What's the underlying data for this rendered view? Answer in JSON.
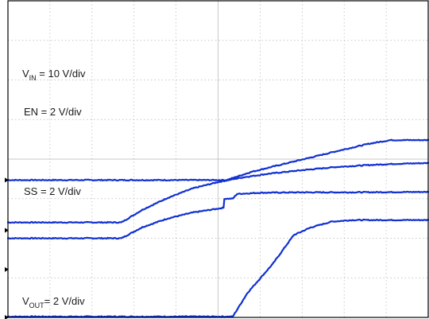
{
  "chart_data": {
    "type": "line",
    "divisions": {
      "x": 10,
      "y": 8
    },
    "series": [
      {
        "name": "VIN",
        "label": {
          "main": "V",
          "sub": "IN",
          "rest": " = 10 V/div"
        },
        "color": "#1030d0",
        "ground_div": 2.2,
        "points": [
          [
            0,
            2.4
          ],
          [
            2.7,
            2.4
          ],
          [
            3.2,
            2.72
          ],
          [
            3.8,
            3.02
          ],
          [
            4.4,
            3.26
          ],
          [
            5,
            3.42
          ],
          [
            5.6,
            3.54
          ],
          [
            6.2,
            3.63
          ],
          [
            7,
            3.72
          ],
          [
            7.8,
            3.8
          ],
          [
            8.6,
            3.85
          ],
          [
            9.2,
            3.88
          ],
          [
            10,
            3.9
          ]
        ]
      },
      {
        "name": "EN",
        "label": {
          "main": "EN = 2 V/div",
          "sub": "",
          "rest": ""
        },
        "color": "#1030d0",
        "ground_div": 1.21,
        "points": [
          [
            0,
            2.0
          ],
          [
            2.7,
            2.0
          ],
          [
            3.2,
            2.28
          ],
          [
            3.8,
            2.5
          ],
          [
            4.4,
            2.65
          ],
          [
            5.13,
            2.77
          ],
          [
            5.15,
            3.0
          ],
          [
            5.35,
            3.0
          ],
          [
            5.45,
            3.12
          ],
          [
            6,
            3.15
          ],
          [
            7,
            3.16
          ],
          [
            8,
            3.16
          ],
          [
            10,
            3.17
          ]
        ]
      },
      {
        "name": "SS",
        "label": {
          "main": "SS = 2 V/div",
          "sub": "",
          "rest": ""
        },
        "color": "#1030d0",
        "ground_div": 3.47,
        "points": [
          [
            0,
            3.47
          ],
          [
            5.2,
            3.47
          ],
          [
            5.8,
            3.68
          ],
          [
            6.5,
            3.86
          ],
          [
            7.2,
            4.04
          ],
          [
            7.9,
            4.22
          ],
          [
            8.6,
            4.39
          ],
          [
            9.1,
            4.48
          ],
          [
            10,
            4.48
          ]
        ]
      },
      {
        "name": "VOUT",
        "label": {
          "main": "V",
          "sub": "OUT",
          "rest": "= 2 V/div"
        },
        "color": "#1030d0",
        "ground_div": 0,
        "points": [
          [
            0,
            0.02
          ],
          [
            5.35,
            0.02
          ],
          [
            5.7,
            0.62
          ],
          [
            6.3,
            1.35
          ],
          [
            6.8,
            2.08
          ],
          [
            7.2,
            2.27
          ],
          [
            7.7,
            2.42
          ],
          [
            8.2,
            2.46
          ],
          [
            10,
            2.46
          ]
        ]
      }
    ],
    "ylim": [
      0,
      8
    ],
    "xlim": [
      0,
      10
    ],
    "grid": true
  }
}
